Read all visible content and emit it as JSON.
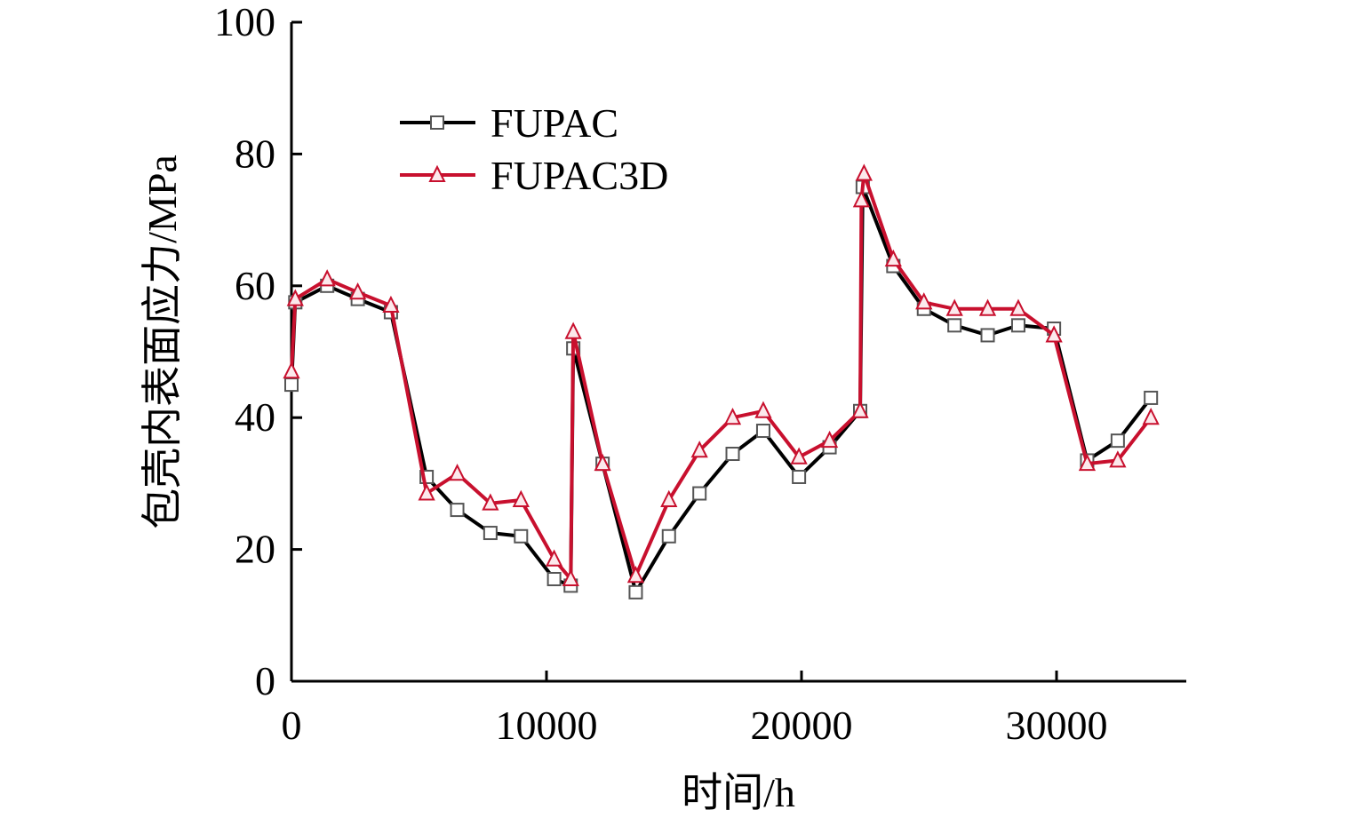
{
  "chart_data": {
    "type": "line",
    "title": "",
    "xlabel": "时间/h",
    "ylabel": "包壳内表面应力/MPa",
    "xlim": [
      0,
      35000
    ],
    "ylim": [
      0,
      100
    ],
    "xticks": [
      0,
      10000,
      20000,
      30000
    ],
    "yticks": [
      0,
      20,
      40,
      60,
      80,
      100
    ],
    "x_tick_labels": [
      "0",
      "10000",
      "20000",
      "30000"
    ],
    "y_tick_labels": [
      "0",
      "20",
      "40",
      "60",
      "80",
      "100"
    ],
    "grid": false,
    "legend_position": "top-left",
    "series": [
      {
        "name": "FUPAC",
        "color": "#000000",
        "marker": "square",
        "x": [
          0,
          150,
          1400,
          2600,
          3900,
          5300,
          6500,
          7800,
          9000,
          10300,
          10950,
          11050,
          12200,
          13500,
          14800,
          16000,
          17300,
          18500,
          19900,
          21100,
          22300,
          22400,
          23600,
          24800,
          26000,
          27300,
          28500,
          29900,
          31200,
          32400,
          33700
        ],
        "y": [
          45,
          57.5,
          60,
          58,
          56,
          31,
          26,
          22.5,
          22,
          15.5,
          14.5,
          50.5,
          33,
          13.5,
          22,
          28.5,
          34.5,
          38,
          31,
          35.5,
          41,
          75,
          63,
          56.5,
          54,
          52.5,
          54,
          53.5,
          33.5,
          36.5,
          43
        ]
      },
      {
        "name": "FUPAC3D",
        "color": "#c8102e",
        "marker": "triangle",
        "x": [
          0,
          150,
          1400,
          2600,
          3900,
          5300,
          6500,
          7800,
          9000,
          10300,
          10950,
          11050,
          12200,
          13500,
          14800,
          16000,
          17300,
          18500,
          19900,
          21100,
          22300,
          22350,
          22450,
          23600,
          24800,
          26000,
          27300,
          28500,
          29900,
          31200,
          32400,
          33700
        ],
        "y": [
          47,
          58,
          61,
          59,
          57,
          28.5,
          31.5,
          27,
          27.5,
          18.5,
          15.5,
          53,
          33,
          16,
          27.5,
          35,
          40,
          41,
          34,
          36.5,
          41,
          73,
          77,
          64,
          57.5,
          56.5,
          56.5,
          56.5,
          52.5,
          33,
          33.5,
          40
        ]
      }
    ]
  }
}
